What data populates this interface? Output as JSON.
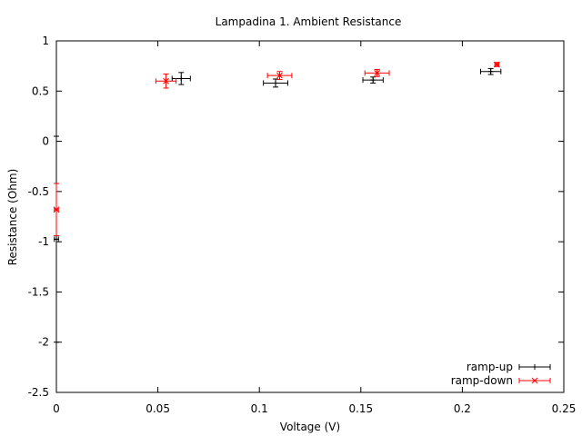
{
  "chart_data": {
    "type": "scatter",
    "title": "Lampadina 1. Ambient Resistance",
    "xlabel": "Voltage (V)",
    "ylabel": "Resistance (Ohm)",
    "xlim": [
      0,
      0.25
    ],
    "ylim": [
      -2.5,
      1
    ],
    "x_ticks": [
      "0",
      "0.05",
      "0.1",
      "0.15",
      "0.2",
      "0.25"
    ],
    "y_ticks": [
      "1",
      "0.5",
      "0",
      "-0.5",
      "-1",
      "-1.5",
      "-2",
      "-2.5"
    ],
    "x_tick_values": [
      0,
      0.05,
      0.1,
      0.15,
      0.2,
      0.25
    ],
    "y_tick_values": [
      1,
      0.5,
      0,
      -0.5,
      -1,
      -1.5,
      -2,
      -2.5
    ],
    "grid": false,
    "legend_position": "bottom-right",
    "series": [
      {
        "name": "ramp-up",
        "color": "#000000",
        "marker": "plus",
        "points": [
          {
            "x": 0,
            "y": -0.975,
            "xerr": 0.001,
            "yerr": 1.025
          },
          {
            "x": 0.0615,
            "y": 0.625,
            "xerr": 0.0045,
            "yerr": 0.06
          },
          {
            "x": 0.108,
            "y": 0.58,
            "xerr": 0.006,
            "yerr": 0.04
          },
          {
            "x": 0.156,
            "y": 0.61,
            "xerr": 0.005,
            "yerr": 0.03
          },
          {
            "x": 0.214,
            "y": 0.695,
            "xerr": 0.005,
            "yerr": 0.03
          }
        ]
      },
      {
        "name": "ramp-down",
        "color": "#ff0000",
        "marker": "cross",
        "points": [
          {
            "x": 0,
            "y": -0.68,
            "xerr": 0.001,
            "yerr": 0.26
          },
          {
            "x": 0.054,
            "y": 0.6,
            "xerr": 0.005,
            "yerr": 0.07
          },
          {
            "x": 0.11,
            "y": 0.655,
            "xerr": 0.006,
            "yerr": 0.04
          },
          {
            "x": 0.158,
            "y": 0.68,
            "xerr": 0.006,
            "yerr": 0.035
          },
          {
            "x": 0.217,
            "y": 0.765,
            "xerr": 0.001,
            "yerr": 0.02
          }
        ]
      }
    ]
  }
}
